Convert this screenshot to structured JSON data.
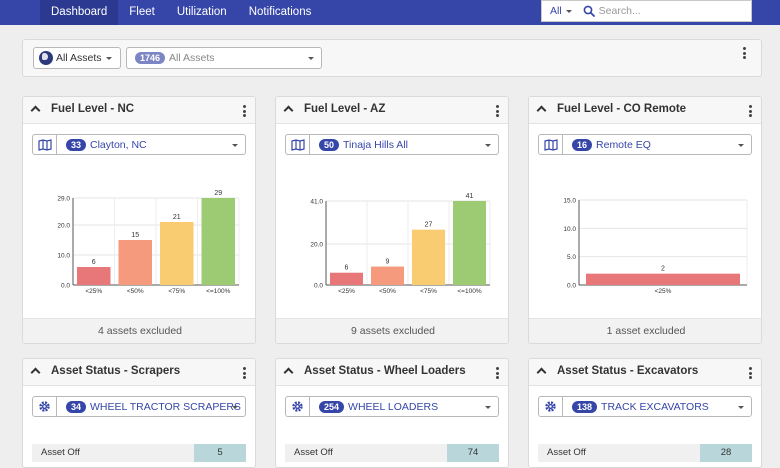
{
  "nav": {
    "items": [
      {
        "label": "Dashboard",
        "active": true
      },
      {
        "label": "Fleet",
        "active": false
      },
      {
        "label": "Utilization",
        "active": false
      },
      {
        "label": "Notifications",
        "active": false
      }
    ]
  },
  "search": {
    "scope": "All",
    "placeholder": "Search..."
  },
  "filter": {
    "assets_button_label": "All Assets",
    "count": "1746",
    "selected": "All Assets"
  },
  "colors": {
    "red": "#e8777a",
    "orange": "#f59a7d",
    "yellow": "#f9cc72",
    "green": "#9ccb74",
    "accent": "#3646a8"
  },
  "panels": [
    {
      "title": "Fuel Level - NC",
      "count": "33",
      "location": "Clayton, NC",
      "footer": "4 assets excluded"
    },
    {
      "title": "Fuel Level - AZ",
      "count": "50",
      "location": "Tinaja Hills All",
      "footer": "9 assets excluded"
    },
    {
      "title": "Fuel Level - CO Remote",
      "count": "16",
      "location": "Remote EQ",
      "footer": "1 asset excluded"
    }
  ],
  "chart_data": [
    {
      "type": "bar",
      "categories": [
        "<25%",
        "<50%",
        "<75%",
        "<=100%"
      ],
      "values": [
        6,
        15,
        21,
        29
      ],
      "colors": [
        "#e8777a",
        "#f59a7d",
        "#f9cc72",
        "#9ccb74"
      ],
      "ylim": [
        0,
        29
      ],
      "yticks": [
        "0.0",
        "10.0",
        "20.0",
        "29.0"
      ],
      "ytick_values": [
        0,
        10,
        20,
        29
      ]
    },
    {
      "type": "bar",
      "categories": [
        "<25%",
        "<50%",
        "<75%",
        "<=100%"
      ],
      "values": [
        6,
        9,
        27,
        41
      ],
      "colors": [
        "#e8777a",
        "#f59a7d",
        "#f9cc72",
        "#9ccb74"
      ],
      "ylim": [
        0,
        41
      ],
      "yticks": [
        "0.0",
        "20.0",
        "41.0"
      ],
      "ytick_values": [
        0,
        20,
        41
      ]
    },
    {
      "type": "bar",
      "categories": [
        "<25%"
      ],
      "values": [
        2
      ],
      "colors": [
        "#e8777a"
      ],
      "ylim": [
        0,
        15
      ],
      "yticks": [
        "0.0",
        "5.0",
        "10.0",
        "15.0"
      ],
      "ytick_values": [
        0,
        5,
        10,
        15
      ]
    }
  ],
  "status_panels": [
    {
      "title": "Asset Status - Scrapers",
      "count": "34",
      "category": "WHEEL TRACTOR SCRAPERS",
      "row_label": "Asset Off",
      "row_value": "5"
    },
    {
      "title": "Asset Status - Wheel Loaders",
      "count": "254",
      "category": "WHEEL LOADERS",
      "row_label": "Asset Off",
      "row_value": "74"
    },
    {
      "title": "Asset Status - Excavators",
      "count": "138",
      "category": "TRACK EXCAVATORS",
      "row_label": "Asset Off",
      "row_value": "28"
    }
  ]
}
